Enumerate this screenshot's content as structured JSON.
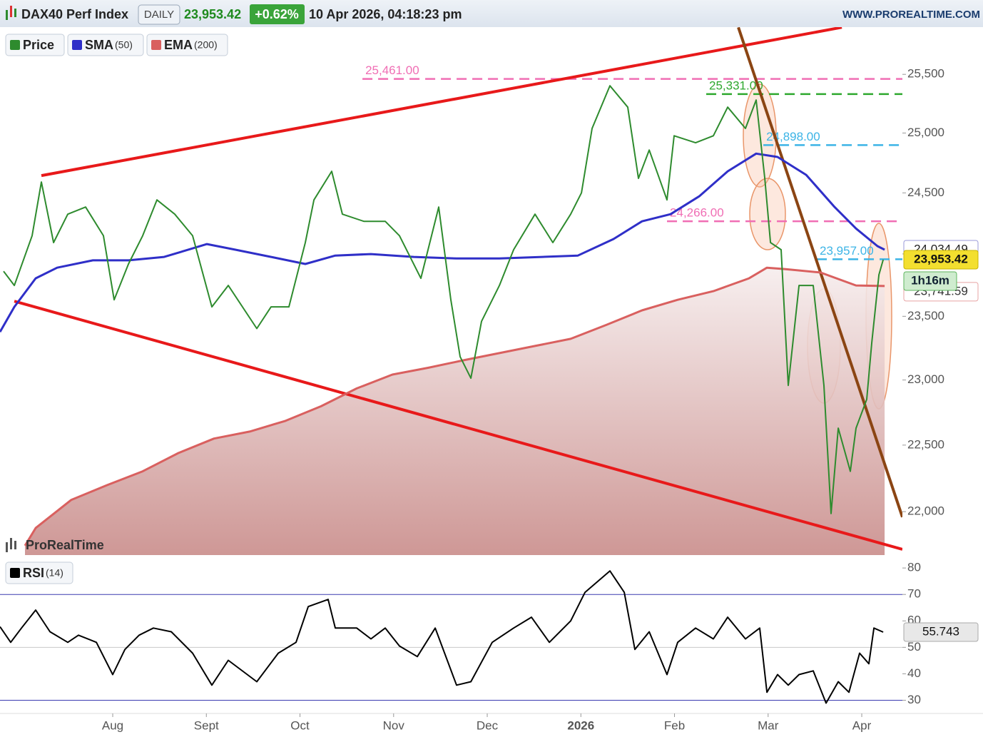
{
  "chart_data": [
    {
      "type": "line",
      "title": "DAX40 Perf Index",
      "interval": "DAILY",
      "last_price_label": "23,953.42",
      "change": "+0.62%",
      "datetime": "10 Apr 2026, 04:18:23 pm",
      "source": "WWW.PROREALTIME.COM",
      "watermark": "ProRealTime",
      "countdown": "1h16m",
      "log_scale": true,
      "xlim": [
        6.796,
        16.434
      ],
      "ylim": [
        21680,
        25910
      ],
      "xticks": [
        {
          "value": 8,
          "label": "Aug"
        },
        {
          "value": 9,
          "label": "Sept"
        },
        {
          "value": 10,
          "label": "Oct"
        },
        {
          "value": 11,
          "label": "Nov"
        },
        {
          "value": 12,
          "label": "Dec"
        },
        {
          "value": 13,
          "label": "2026"
        },
        {
          "value": 14,
          "label": "Feb"
        },
        {
          "value": 15,
          "label": "Mar"
        },
        {
          "value": 16,
          "label": "Apr"
        }
      ],
      "yticks": [
        {
          "value": 22000,
          "label": "22,000"
        },
        {
          "value": 22500,
          "label": "22,500"
        },
        {
          "value": 23000,
          "label": "23,000"
        },
        {
          "value": 23500,
          "label": "23,500"
        },
        {
          "value": 24000,
          "label": "24,000"
        },
        {
          "value": 24500,
          "label": "24,500"
        },
        {
          "value": 25000,
          "label": "25,000"
        },
        {
          "value": 25500,
          "label": "25,500"
        }
      ],
      "series": [
        {
          "name": "Price",
          "color": "#2e8b2e",
          "last_label": "23,953.42",
          "x": [
            6.834,
            6.949,
            7.139,
            7.238,
            7.368,
            7.52,
            7.71,
            7.901,
            8.015,
            8.168,
            8.32,
            8.472,
            8.663,
            8.853,
            9.059,
            9.234,
            9.539,
            9.691,
            9.882,
            10.057,
            10.149,
            10.339,
            10.453,
            10.682,
            10.91,
            11.063,
            11.291,
            11.482,
            11.611,
            11.71,
            11.825,
            11.939,
            12.13,
            12.282,
            12.51,
            12.701,
            12.891,
            13.006,
            13.12,
            13.31,
            13.501,
            13.615,
            13.73,
            13.92,
            13.996,
            14.225,
            14.415,
            14.568,
            14.758,
            14.872,
            14.964,
            15.025,
            15.139,
            15.215,
            15.33,
            15.482,
            15.596,
            15.672,
            15.749,
            15.878,
            15.939,
            16.053,
            16.107,
            16.183,
            16.229
          ],
          "values": [
            23860,
            23746,
            24148,
            24590,
            24092,
            24324,
            24383,
            24148,
            23631,
            23919,
            24148,
            24442,
            24324,
            24148,
            23575,
            23746,
            23403,
            23575,
            23575,
            24092,
            24442,
            24679,
            24324,
            24266,
            24266,
            24148,
            23803,
            24383,
            23631,
            23182,
            23014,
            23460,
            23746,
            24034,
            24324,
            24092,
            24324,
            24500,
            25039,
            25402,
            25219,
            24620,
            24857,
            24442,
            24977,
            24918,
            24977,
            25219,
            25039,
            25280,
            24620,
            24092,
            24034,
            22958,
            23746,
            23746,
            22958,
            21986,
            22629,
            22302,
            22629,
            22850,
            23293,
            23832,
            23953.42
          ]
        },
        {
          "name": "SMA",
          "param": "(50)",
          "color": "#2f2fc8",
          "last_label": "24,034.49",
          "x": [
            6.796,
            6.949,
            7.177,
            7.406,
            7.787,
            8.168,
            8.549,
            9.006,
            9.31,
            9.691,
            10.057,
            10.377,
            10.758,
            11.215,
            11.672,
            12.13,
            12.587,
            12.968,
            13.349,
            13.653,
            13.958,
            14.263,
            14.568,
            14.872,
            15.101,
            15.406,
            15.71,
            15.939,
            16.168,
            16.244
          ],
          "values": [
            23376,
            23575,
            23803,
            23889,
            23948,
            23948,
            23976,
            24080,
            24034,
            23976,
            23919,
            23987,
            23999,
            23976,
            23963,
            23963,
            23976,
            23987,
            24121,
            24266,
            24324,
            24471,
            24679,
            24827,
            24799,
            24649,
            24383,
            24207,
            24063,
            24034.49
          ]
        },
        {
          "name": "EMA",
          "param": "(200)",
          "color": "#d9605f",
          "last_label": "23,741.59",
          "x": [
            7.063,
            7.177,
            7.558,
            7.939,
            8.32,
            8.701,
            9.082,
            9.463,
            9.844,
            10.225,
            10.606,
            10.987,
            11.368,
            11.749,
            12.13,
            12.51,
            12.891,
            13.272,
            13.653,
            14.034,
            14.415,
            14.796,
            14.987,
            15.177,
            15.558,
            15.939,
            16.244
          ],
          "values": [
            21749,
            21879,
            22088,
            22198,
            22302,
            22440,
            22550,
            22603,
            22685,
            22797,
            22935,
            23042,
            23095,
            23154,
            23210,
            23266,
            23322,
            23432,
            23547,
            23631,
            23700,
            23803,
            23889,
            23878,
            23850,
            23746,
            23741.59
          ]
        }
      ],
      "levels": [
        {
          "value": 25461,
          "label": "25,461.00",
          "color": "#f06eb4",
          "x_start": 10.667
        },
        {
          "value": 25331,
          "label": "25,331.00",
          "color": "#2ea82e",
          "x_start": 14.339
        },
        {
          "value": 24898,
          "label": "24,898.00",
          "color": "#3cb4e6",
          "x_start": 14.949
        },
        {
          "value": 24266,
          "label": "24,266.00",
          "color": "#f06eb4",
          "x_start": 13.92
        },
        {
          "value": 23957,
          "label": "23,957.00",
          "color": "#3cb4e6",
          "x_start": 15.52
        }
      ],
      "trendlines": [
        {
          "color": "#e8191a",
          "x": [
            7.238,
            15.787
          ],
          "y": [
            24643,
            25908
          ]
        },
        {
          "color": "#e8191a",
          "x": [
            6.949,
            16.434
          ],
          "y": [
            23620,
            21722
          ]
        },
        {
          "color": "#8b4513",
          "x": [
            14.682,
            16.434
          ],
          "y": [
            25908,
            21960
          ]
        }
      ]
    },
    {
      "type": "line",
      "xlim": [
        6.796,
        16.434
      ],
      "ylim": [
        25,
        83
      ],
      "yticks": [
        30,
        40,
        50,
        60,
        70,
        80
      ],
      "levels": [
        {
          "value": 70,
          "color": "#3a3ab0"
        },
        {
          "value": 50,
          "color": "#c8c8c8"
        },
        {
          "value": 30,
          "color": "#3a3ab0"
        }
      ],
      "series": [
        {
          "name": "RSI",
          "param": "(14)",
          "color": "#000000",
          "last_label": "55.743",
          "x": [
            6.796,
            6.91,
            7.025,
            7.177,
            7.33,
            7.52,
            7.634,
            7.825,
            8.0,
            8.13,
            8.282,
            8.434,
            8.625,
            8.853,
            9.059,
            9.234,
            9.539,
            9.768,
            9.958,
            10.088,
            10.301,
            10.377,
            10.606,
            10.758,
            10.91,
            11.063,
            11.253,
            11.444,
            11.672,
            11.825,
            12.053,
            12.282,
            12.472,
            12.663,
            12.891,
            13.044,
            13.31,
            13.463,
            13.577,
            13.73,
            13.92,
            14.034,
            14.225,
            14.415,
            14.568,
            14.758,
            14.91,
            14.987,
            15.101,
            15.215,
            15.33,
            15.482,
            15.619,
            15.749,
            15.863,
            15.977,
            16.076,
            16.13,
            16.229
          ],
          "values": [
            57.8,
            51.9,
            57.3,
            64.1,
            55.9,
            51.9,
            54.6,
            51.9,
            39.7,
            49.2,
            54.6,
            57.3,
            55.9,
            47.8,
            35.7,
            45.1,
            37.0,
            47.8,
            51.9,
            65.4,
            68.1,
            57.3,
            57.3,
            53.2,
            57.3,
            50.5,
            46.5,
            57.3,
            35.7,
            37.0,
            51.9,
            57.3,
            61.4,
            51.9,
            60.0,
            70.8,
            78.9,
            70.8,
            49.2,
            55.9,
            39.7,
            51.9,
            57.3,
            53.2,
            61.4,
            53.2,
            57.3,
            33.0,
            39.7,
            35.7,
            39.7,
            41.1,
            28.9,
            37.0,
            33.0,
            47.8,
            43.8,
            57.3,
            55.743
          ]
        }
      ]
    }
  ]
}
